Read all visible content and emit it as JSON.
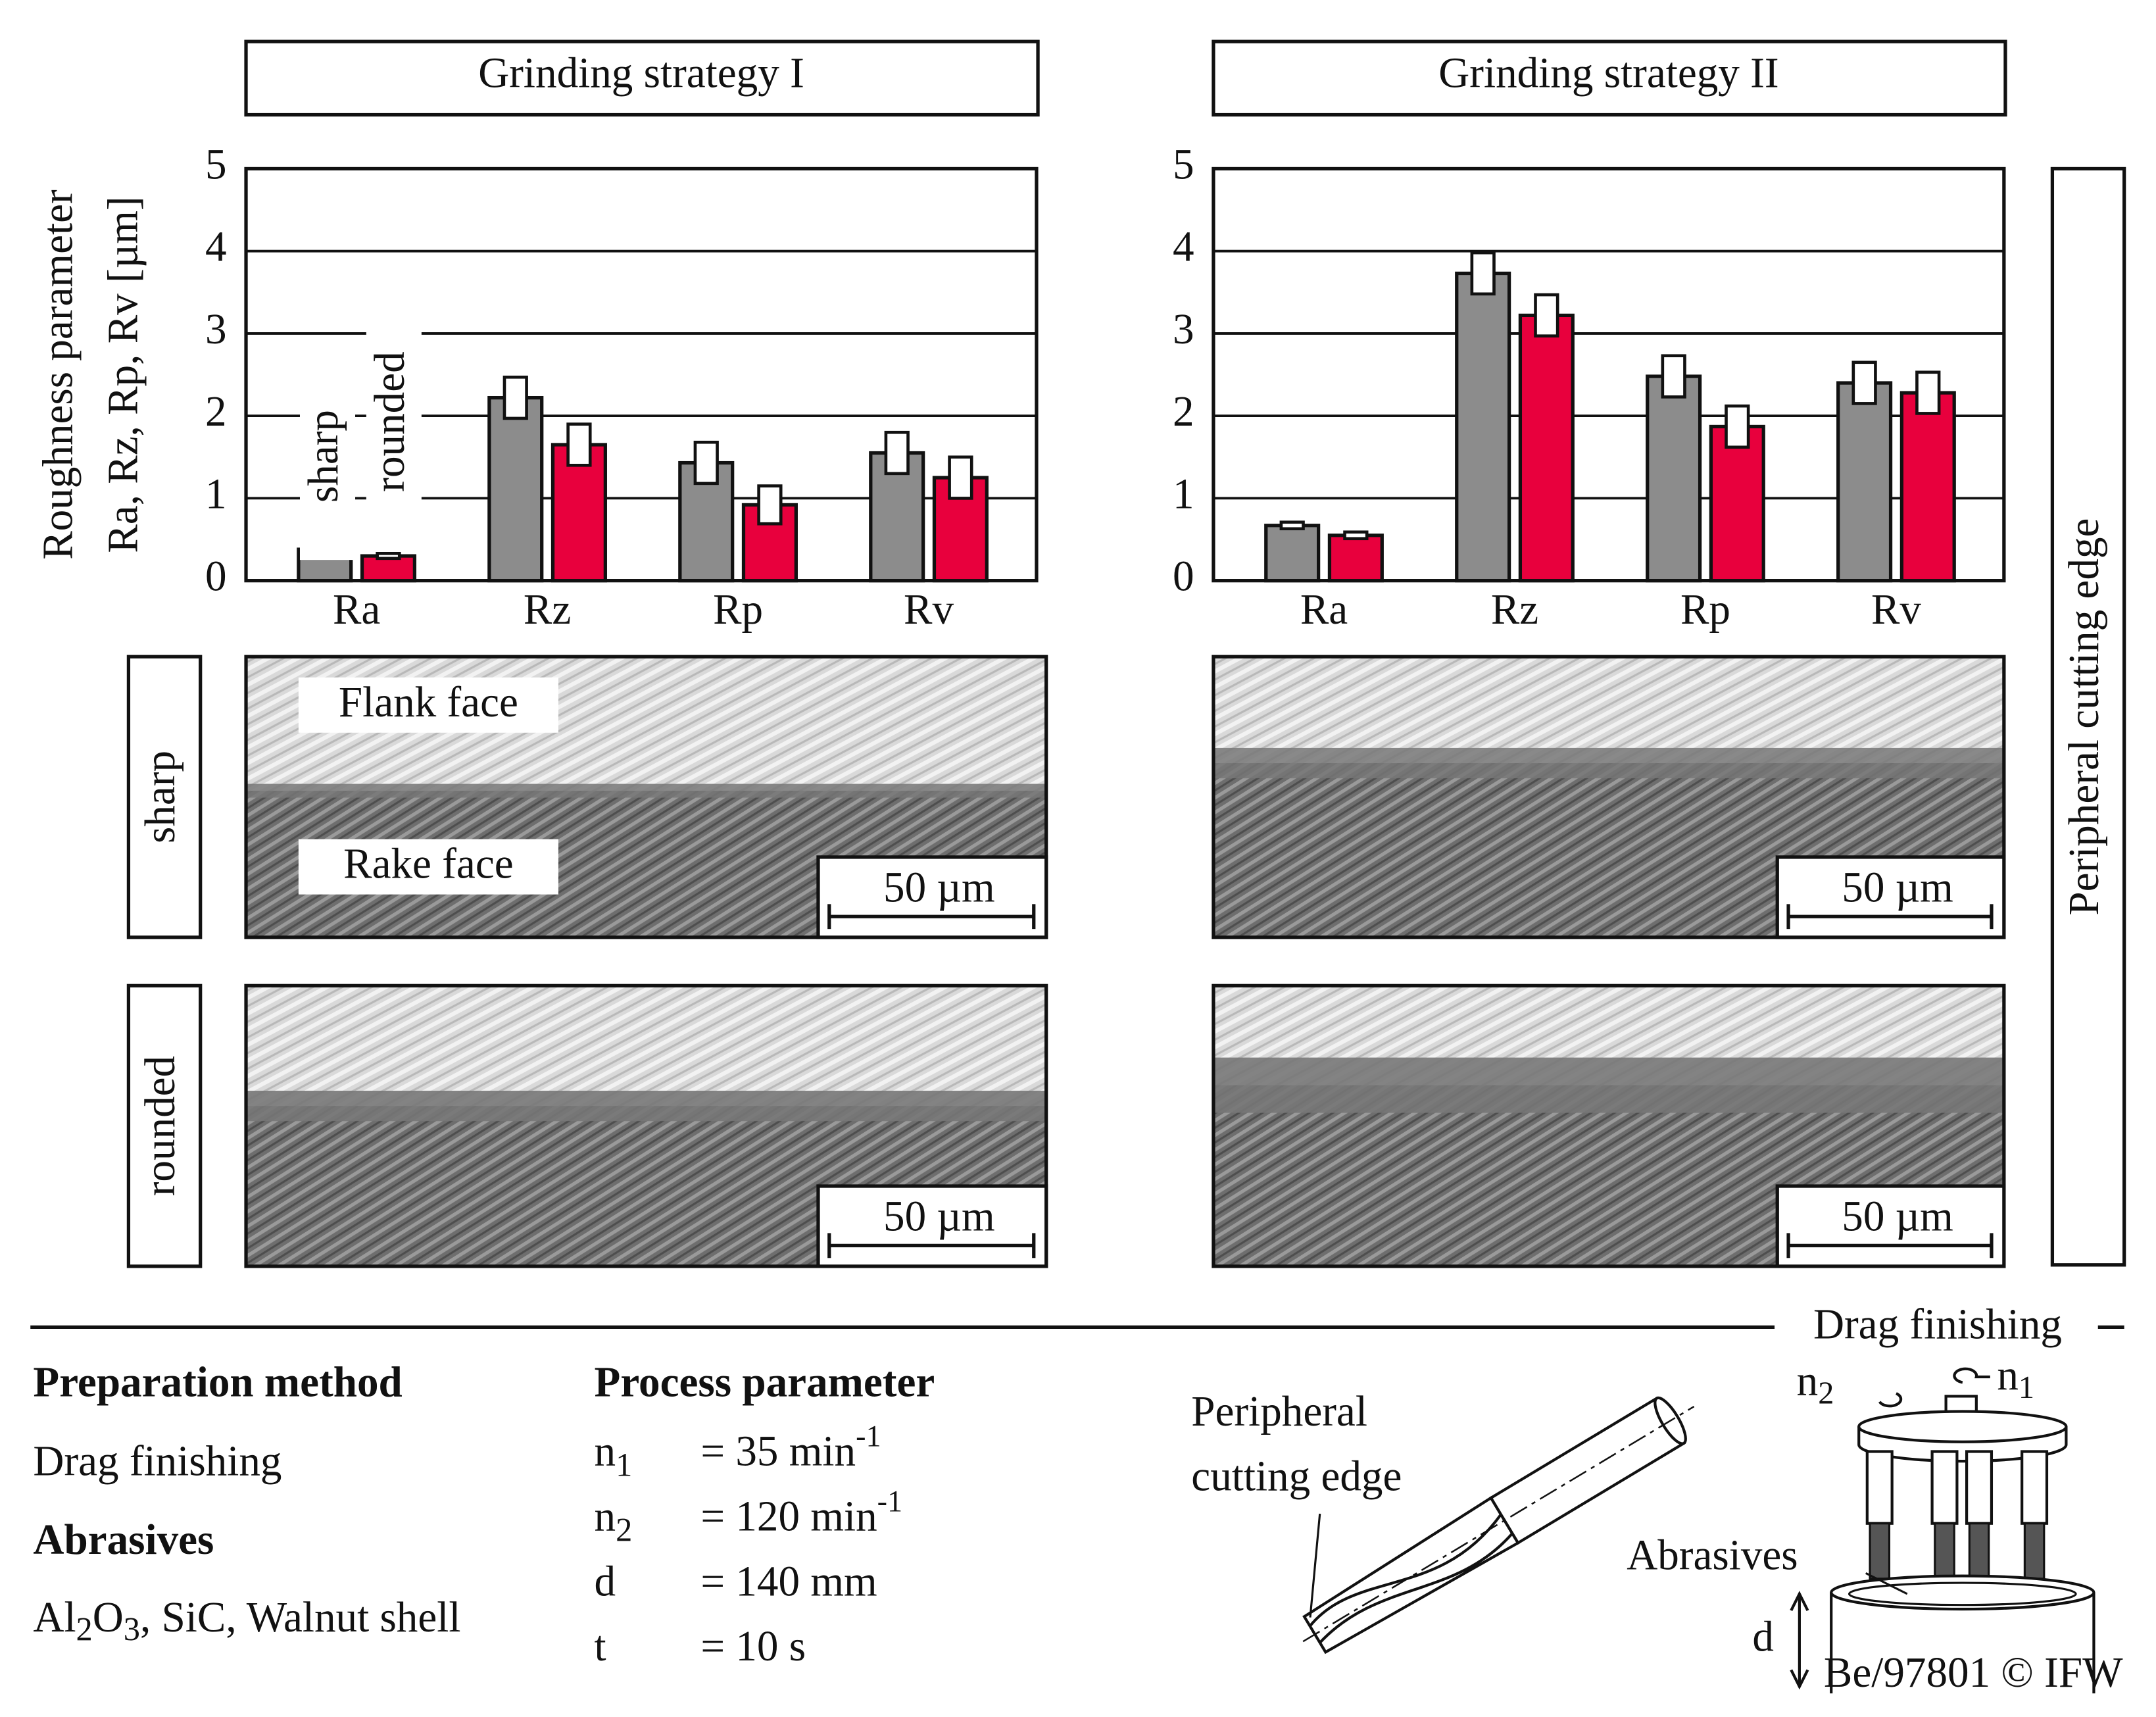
{
  "chart_data": [
    {
      "type": "bar",
      "title": "Grinding strategy I",
      "ylabel": [
        "Roughness parameter",
        "Ra, Rz, Rp, Rv [µm]"
      ],
      "categories": [
        "Ra",
        "Rz",
        "Rp",
        "Rv"
      ],
      "series": [
        {
          "name": "sharp",
          "color": "#8c8c8c",
          "values": [
            0.38,
            2.22,
            1.43,
            1.55
          ],
          "errors": [
            0.04,
            0.25,
            0.25,
            0.25
          ]
        },
        {
          "name": "rounded",
          "color": "#e8003d",
          "values": [
            0.3,
            1.65,
            0.92,
            1.25
          ],
          "errors": [
            0.03,
            0.25,
            0.23,
            0.25
          ]
        }
      ],
      "ylim": [
        0,
        5
      ],
      "yticks": [
        0,
        1,
        2,
        3,
        4,
        5
      ],
      "grid": true
    },
    {
      "type": "bar",
      "title": "Grinding strategy II",
      "categories": [
        "Ra",
        "Rz",
        "Rp",
        "Rv"
      ],
      "series": [
        {
          "color": "#8c8c8c",
          "values": [
            0.67,
            3.73,
            2.48,
            2.4
          ],
          "errors": [
            0.04,
            0.25,
            0.25,
            0.25
          ]
        },
        {
          "color": "#e8003d",
          "values": [
            0.55,
            3.22,
            1.87,
            2.28
          ],
          "errors": [
            0.04,
            0.25,
            0.25,
            0.25
          ]
        }
      ],
      "ylim": [
        0,
        5
      ],
      "yticks": [
        0,
        1,
        2,
        3,
        4,
        5
      ],
      "grid": true
    }
  ],
  "figure": {
    "row_labels": [
      "sharp",
      "rounded"
    ],
    "side_label": "Peripheral cutting edge",
    "image_labels": [
      "Flank face",
      "Rake face"
    ],
    "scale_bar": "50 µm",
    "section_title": "Drag finishing",
    "preparation_heading": "Preparation method",
    "preparation": "Drag finishing",
    "abrasives_heading": "Abrasives",
    "materials": [
      {
        "text": "Al",
        "sub": "2"
      },
      {
        "text": "O",
        "sub": "3"
      },
      {
        "text": ", SiC, Walnut shell"
      }
    ],
    "process_heading": "Process parameter",
    "params": [
      {
        "symbol": "n",
        "sub": "1",
        "value": "= 35 min",
        "sup": "-1"
      },
      {
        "symbol": "n",
        "sub": "2",
        "value": "= 120 min",
        "sup": "-1"
      },
      {
        "symbol": "d",
        "value": "= 140 mm"
      },
      {
        "symbol": "t",
        "value": "= 10 s"
      }
    ],
    "tool_label": [
      "Peripheral",
      "cutting edge"
    ],
    "machine": {
      "n2": {
        "symbol": "n",
        "sub": "2"
      },
      "n1": {
        "symbol": "n",
        "sub": "1"
      },
      "abrasives": "Abrasives",
      "d": "d"
    },
    "credit": "Be/97801 © IFW"
  }
}
